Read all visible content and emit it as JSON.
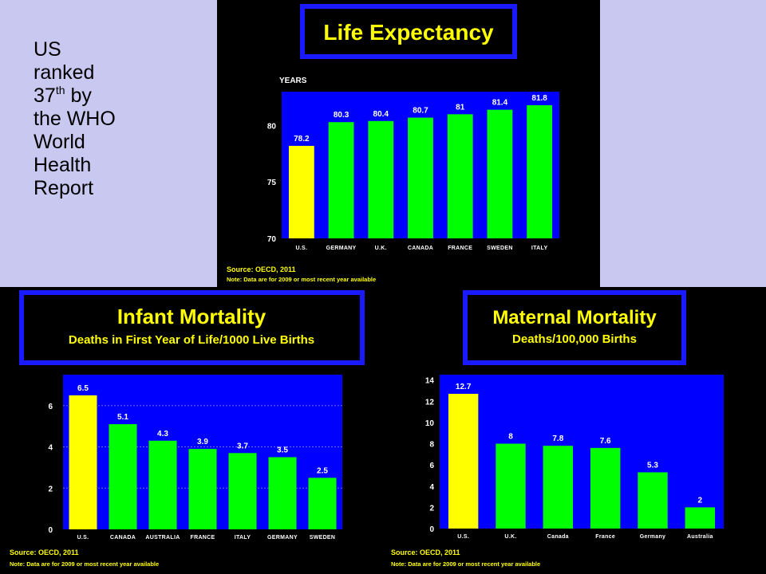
{
  "caption": {
    "line1": "US",
    "line2": "ranked",
    "line3_num": "37",
    "line3_sup": "th",
    "line3_rest": " by",
    "line4": "the WHO",
    "line5": "World",
    "line6": "Health",
    "line7": "Report"
  },
  "colors": {
    "panel_bg": "#c8c8f0",
    "plot_bg": "#0000ff",
    "title_border": "#1a1aff",
    "highlight_bar": "#ffff00",
    "bar": "#00ff00",
    "text": "#ffff00"
  },
  "chart_data": [
    {
      "type": "bar",
      "title": "Life Expectancy",
      "ylabel": "YEARS",
      "categories": [
        "U.S.",
        "GERMANY",
        "U.K.",
        "CANADA",
        "FRANCE",
        "SWEDEN",
        "ITALY"
      ],
      "values": [
        78.2,
        80.3,
        80.4,
        80.7,
        81,
        81.4,
        81.8
      ],
      "value_labels": [
        "78.2",
        "80.3",
        "80.4",
        "80.7",
        "81",
        "81.4",
        "81.8"
      ],
      "highlight_index": 0,
      "ylim": [
        70,
        83
      ],
      "yticks": [
        70,
        75,
        80
      ],
      "grid": false,
      "source": "Source: OECD, 2011",
      "note": "Note: Data are for 2009 or most recent year available"
    },
    {
      "type": "bar",
      "title": "Infant Mortality",
      "subtitle": "Deaths in First Year of Life/1000 Live Births",
      "categories": [
        "U.S.",
        "CANADA",
        "AUSTRALIA",
        "FRANCE",
        "ITALY",
        "GERMANY",
        "SWEDEN"
      ],
      "values": [
        6.5,
        5.1,
        4.3,
        3.9,
        3.7,
        3.5,
        2.5
      ],
      "value_labels": [
        "6.5",
        "5.1",
        "4.3",
        "3.9",
        "3.7",
        "3.5",
        "2.5"
      ],
      "highlight_index": 0,
      "ylim": [
        0,
        7.5
      ],
      "yticks": [
        0,
        2,
        4,
        6
      ],
      "grid": true,
      "source": "Source: OECD, 2011",
      "note": "Note: Data are for 2009 or most recent year available"
    },
    {
      "type": "bar",
      "title": "Maternal Mortality",
      "subtitle": "Deaths/100,000 Births",
      "categories": [
        "U.S.",
        "U.K.",
        "Canada",
        "France",
        "Germany",
        "Australia"
      ],
      "values": [
        12.7,
        8,
        7.8,
        7.6,
        5.3,
        2
      ],
      "value_labels": [
        "12.7",
        "8",
        "7.8",
        "7.6",
        "5.3",
        "2"
      ],
      "highlight_index": 0,
      "ylim": [
        0,
        14.5
      ],
      "yticks": [
        0,
        2,
        4,
        6,
        8,
        10,
        12,
        14
      ],
      "grid": false,
      "source": "Source: OECD, 2011",
      "note": "Note: Data are for 2009 or most recent year available"
    }
  ]
}
